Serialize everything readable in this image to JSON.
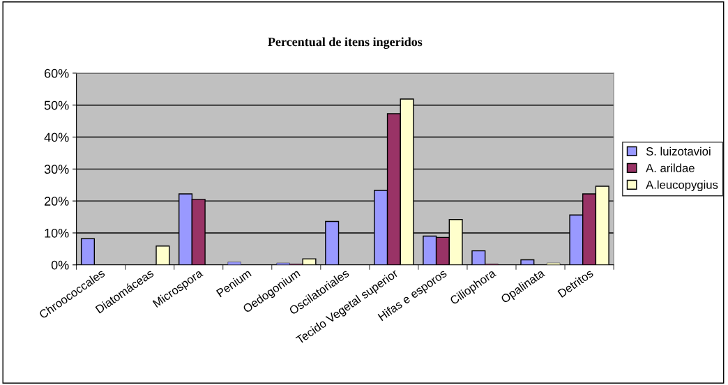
{
  "chart_data": {
    "type": "bar",
    "title": "Percentual de itens ingeridos",
    "categories": [
      "Chroococcales",
      "Diatomáceas",
      "Microspora",
      "Penium",
      "Oedogonium",
      "Oscilatoriales",
      "Tecido Vegetal superior",
      "Hifas e esporos",
      "Ciliophora",
      "Opalinata",
      "Detritos"
    ],
    "series": [
      {
        "name": "S. luizotavioi",
        "color": "#9999ff",
        "values": [
          8.2,
          0,
          22.2,
          0.9,
          0.6,
          13.6,
          23.3,
          9.0,
          4.4,
          1.6,
          15.6
        ]
      },
      {
        "name": "A. arildae",
        "color": "#993366",
        "values": [
          0,
          0,
          20.5,
          0,
          0.3,
          0,
          47.3,
          8.6,
          0.3,
          0,
          22.2
        ]
      },
      {
        "name": "A.leucopygius",
        "color": "#ffffcc",
        "values": [
          0,
          5.9,
          0,
          0,
          1.9,
          0,
          51.9,
          14.2,
          0,
          0.6,
          24.6
        ]
      }
    ],
    "ylim": [
      0,
      60
    ],
    "yticks": [
      {
        "value": 0,
        "label": "0%"
      },
      {
        "value": 10,
        "label": "10%"
      },
      {
        "value": 20,
        "label": "20%"
      },
      {
        "value": 30,
        "label": "30%"
      },
      {
        "value": 40,
        "label": "40%"
      },
      {
        "value": 50,
        "label": "50%"
      },
      {
        "value": 60,
        "label": "60%"
      }
    ],
    "grid": "y",
    "legend": "right"
  }
}
